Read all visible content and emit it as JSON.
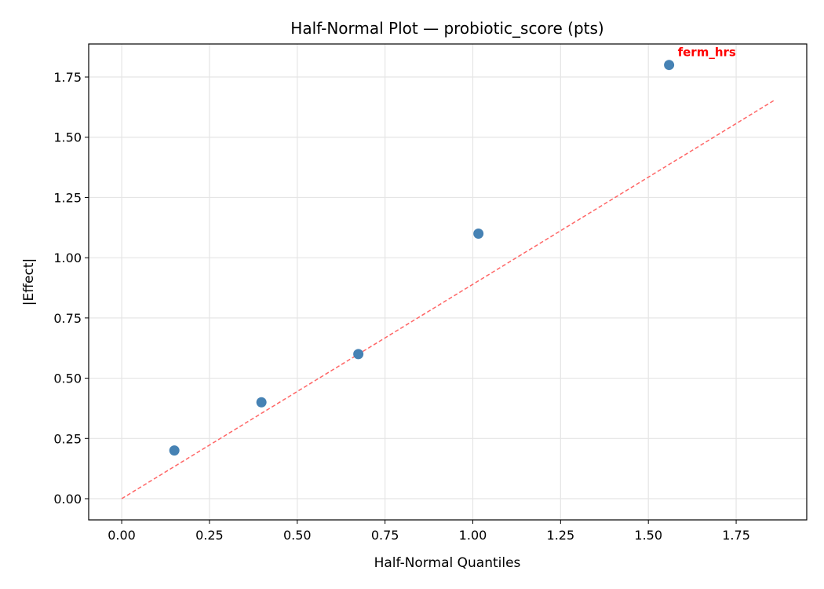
{
  "chart_data": {
    "type": "scatter",
    "title": "Half-Normal Plot — probiotic_score (pts)",
    "xlabel": "Half-Normal Quantiles",
    "ylabel": "|Effect|",
    "xlim": [
      -0.094,
      1.951
    ],
    "ylim": [
      -0.088,
      1.887
    ],
    "xticks": [
      "0.00",
      "0.25",
      "0.50",
      "0.75",
      "1.00",
      "1.25",
      "1.50",
      "1.75"
    ],
    "yticks": [
      "0.00",
      "0.25",
      "0.50",
      "0.75",
      "1.00",
      "1.25",
      "1.50",
      "1.75"
    ],
    "grid": true,
    "points": [
      {
        "x": 0.15,
        "y": 0.2
      },
      {
        "x": 0.398,
        "y": 0.4
      },
      {
        "x": 0.674,
        "y": 0.6
      },
      {
        "x": 1.016,
        "y": 1.1
      },
      {
        "x": 1.559,
        "y": 1.8
      }
    ],
    "point_color": "#4682b4",
    "reference_line": {
      "x": [
        0,
        1.857
      ],
      "y": [
        0,
        1.652
      ],
      "color": "#ff6666",
      "style": "dashed"
    },
    "annotations": [
      {
        "text": "ferm_hrs",
        "x": 1.559,
        "y": 1.8,
        "color": "#ff0000"
      }
    ]
  }
}
